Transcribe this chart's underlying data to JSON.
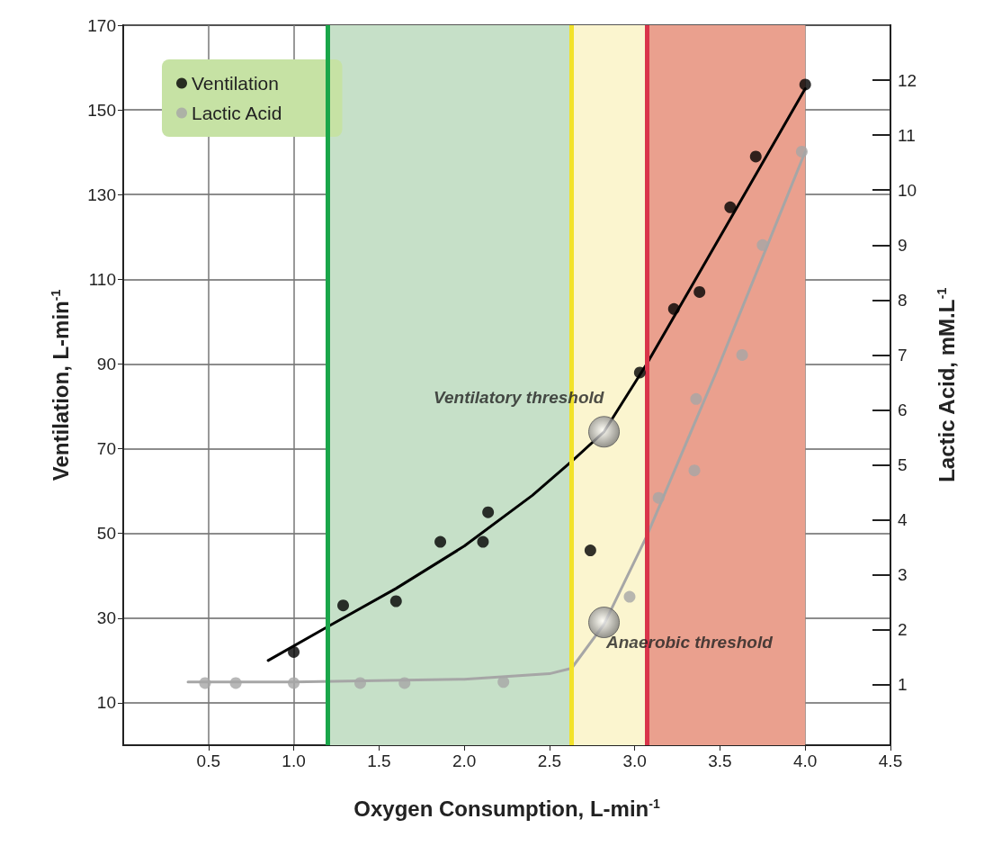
{
  "chart_data": {
    "type": "scatter",
    "xlabel": "Oxygen Consumption, L-min$^{-1}$",
    "ylabel": "Ventilation, L-min$^{-1}$",
    "y2label": "Lactic Acid, mM.L$^{-1}$",
    "xlim": [
      0,
      4.5
    ],
    "xticks": [
      0.5,
      {
        "value": 1,
        "label": "1.0"
      },
      1.5,
      {
        "value": 2,
        "label": "2.0"
      },
      2.5,
      {
        "value": 3,
        "label": "3.0"
      },
      3.5,
      {
        "value": 4,
        "label": "4.0"
      },
      4.5
    ],
    "ylim": [
      0,
      170
    ],
    "yticks": [
      10,
      30,
      50,
      70,
      90,
      110,
      130,
      150,
      170
    ],
    "y2lim": [
      -0.1,
      13
    ],
    "y2ticks": [
      1,
      2,
      3,
      4,
      5,
      6,
      7,
      8,
      9,
      10,
      11,
      12
    ],
    "grid": true,
    "legend": "top left",
    "marker": "circle",
    "series": [
      {
        "name": "Ventilation",
        "color": "#000000",
        "x": [
          1.0,
          1.29,
          1.6,
          1.86,
          2.11,
          2.14,
          2.74,
          3.03,
          3.23,
          3.38,
          3.56,
          3.71,
          4.0
        ],
        "values": [
          22,
          33,
          34,
          48,
          48,
          55,
          46,
          88,
          103,
          107,
          127,
          139,
          156
        ]
      },
      {
        "name": "Lactic Acid",
        "color": "#a6a6a6",
        "axis": "y2",
        "x": [
          0.48,
          0.66,
          1.0,
          1.39,
          1.65,
          2.23,
          2.97,
          3.14,
          3.35,
          3.36,
          3.63,
          3.75,
          3.98
        ],
        "values": [
          1.03,
          1.03,
          1.03,
          1.03,
          1.03,
          1.05,
          2.6,
          4.4,
          4.9,
          6.2,
          7.0,
          9.0,
          10.7
        ]
      },
      {
        "type": "line",
        "marker": "none",
        "color": "#000000",
        "x": [
          0.85,
          1.2,
          1.6,
          2.0,
          2.4,
          2.63,
          2.82,
          3.07,
          3.5,
          4.0
        ],
        "values": [
          20,
          28,
          37,
          47,
          59,
          67,
          74,
          90,
          120,
          155
        ]
      },
      {
        "type": "line",
        "marker": "none",
        "color": "#a6a6a6",
        "axis": "y2",
        "x": [
          0.38,
          1.0,
          2.0,
          2.5,
          2.63,
          2.82,
          3.07,
          3.48,
          4.0
        ],
        "values": [
          1.05,
          1.05,
          1.1,
          1.2,
          1.3,
          2.1,
          3.7,
          6.7,
          10.7
        ]
      }
    ],
    "ref_lines": [
      {
        "axis": "x",
        "value": 1.2,
        "color": "#1aa64a"
      },
      {
        "axis": "x",
        "value": 2.63,
        "color": "#f2e22a"
      },
      {
        "axis": "x",
        "value": 3.07,
        "color": "#d9354a"
      }
    ],
    "bands": [
      {
        "axis": "x",
        "from": 1.2,
        "to": 2.63,
        "color": "#c6e0c8"
      },
      {
        "axis": "x",
        "from": 2.63,
        "to": 3.07,
        "color": "#fbf5cf"
      },
      {
        "axis": "x",
        "from": 3.07,
        "to": 4.0,
        "color": "#eaa08e"
      }
    ],
    "annotations": [
      {
        "text": "Ventilatory threshold",
        "x": 2.82,
        "y": 74
      },
      {
        "text": "Anaerobic threshold",
        "x": 2.82,
        "y": 29
      }
    ]
  }
}
